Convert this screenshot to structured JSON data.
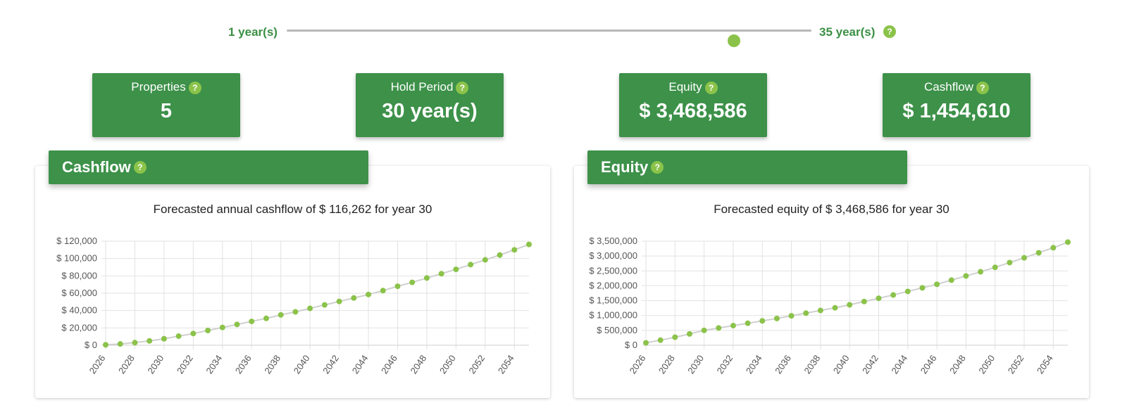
{
  "slider": {
    "min_label": "1 year(s)",
    "max_label": "35 year(s)",
    "min": 1,
    "max": 35,
    "value": 30,
    "help_icon": "question-icon"
  },
  "stats": [
    {
      "title": "Properties",
      "value": "5"
    },
    {
      "title": "Hold Period",
      "value": "30 year(s)"
    },
    {
      "title": "Equity",
      "value": "$ 3,468,586"
    },
    {
      "title": "Cashflow",
      "value": "$ 1,454,610"
    }
  ],
  "cashflow_panel": {
    "header": "Cashflow",
    "subtitle": "Forecasted annual cashflow of $ 116,262 for year 30"
  },
  "equity_panel": {
    "header": "Equity",
    "subtitle": "Forecasted equity of $ 3,468,586 for year 30"
  },
  "colors": {
    "primary_green": "#3d9149",
    "accent_green": "#8bc34a",
    "line": "#d0d0d0"
  },
  "chart_data": [
    {
      "type": "line",
      "ylim": [
        0,
        120000
      ],
      "yticks": [
        0,
        20000,
        40000,
        60000,
        80000,
        100000,
        120000
      ],
      "ytick_labels": [
        "$ 0",
        "$ 20,000",
        "$ 40,000",
        "$ 60,000",
        "$ 80,000",
        "$ 100,000",
        "$ 120,000"
      ],
      "xtick_labels": [
        "2026",
        "2028",
        "2030",
        "2032",
        "2034",
        "2036",
        "2038",
        "2040",
        "2042",
        "2044",
        "2046",
        "2048",
        "2050",
        "2052",
        "2054"
      ],
      "x": [
        2026,
        2027,
        2028,
        2029,
        2030,
        2031,
        2032,
        2033,
        2034,
        2035,
        2036,
        2037,
        2038,
        2039,
        2040,
        2041,
        2042,
        2043,
        2044,
        2045,
        2046,
        2047,
        2048,
        2049,
        2050,
        2051,
        2052,
        2053,
        2054,
        2055
      ],
      "y": [
        500,
        1500,
        3000,
        5000,
        7500,
        10500,
        13500,
        17000,
        20500,
        24000,
        27500,
        31000,
        35000,
        38500,
        42500,
        46500,
        50500,
        54500,
        58500,
        63000,
        68000,
        72500,
        77500,
        82500,
        87500,
        93000,
        98500,
        104000,
        110000,
        116262
      ],
      "grid": true
    },
    {
      "type": "line",
      "ylim": [
        0,
        3500000
      ],
      "yticks": [
        0,
        500000,
        1000000,
        1500000,
        2000000,
        2500000,
        3000000,
        3500000
      ],
      "ytick_labels": [
        "$ 0",
        "$ 500,000",
        "$ 1,000,000",
        "$ 1,500,000",
        "$ 2,000,000",
        "$ 2,500,000",
        "$ 3,000,000",
        "$ 3,500,000"
      ],
      "xtick_labels": [
        "2026",
        "2028",
        "2030",
        "2032",
        "2034",
        "2036",
        "2038",
        "2040",
        "2042",
        "2044",
        "2046",
        "2048",
        "2050",
        "2052",
        "2054"
      ],
      "x": [
        2026,
        2027,
        2028,
        2029,
        2030,
        2031,
        2032,
        2033,
        2034,
        2035,
        2036,
        2037,
        2038,
        2039,
        2040,
        2041,
        2042,
        2043,
        2044,
        2045,
        2046,
        2047,
        2048,
        2049,
        2050,
        2051,
        2052,
        2053,
        2054,
        2055
      ],
      "y": [
        80000,
        170000,
        270000,
        380000,
        500000,
        580000,
        660000,
        740000,
        820000,
        900000,
        990000,
        1080000,
        1170000,
        1260000,
        1360000,
        1470000,
        1580000,
        1690000,
        1810000,
        1930000,
        2050000,
        2190000,
        2330000,
        2470000,
        2620000,
        2780000,
        2940000,
        3110000,
        3280000,
        3468586
      ],
      "grid": true
    }
  ]
}
